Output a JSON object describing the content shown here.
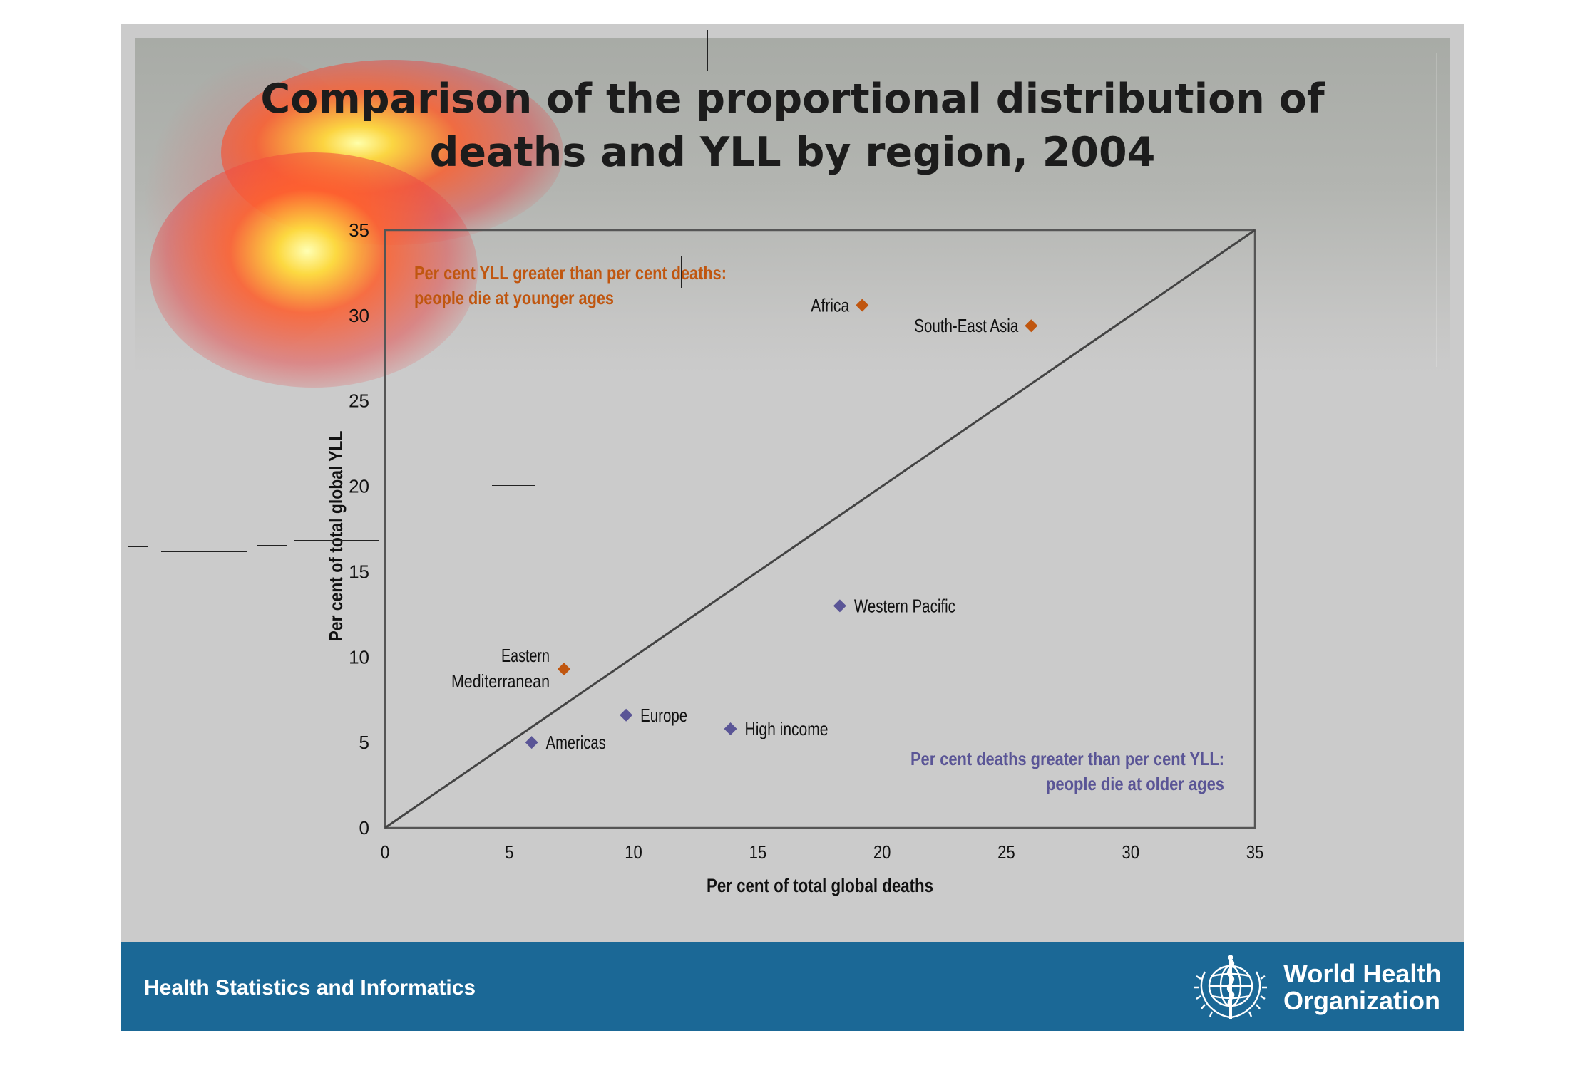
{
  "slide": {
    "title_line1": "Comparison of the proportional distribution of",
    "title_line2": "deaths and YLL by region, 2004",
    "colors": {
      "background": "#cbcbcb",
      "footer": "#1b6896",
      "orange": "#c0560f",
      "purple": "#5a5596"
    }
  },
  "footer": {
    "label": "Health Statistics and Informatics",
    "org_line1": "World Health",
    "org_line2": "Organization",
    "emblem_icon": "who-emblem-icon"
  },
  "chart_data": {
    "type": "scatter",
    "xlabel": "Per cent of total global deaths",
    "ylabel": "Per cent of total global YLL",
    "xlim": [
      0,
      35
    ],
    "ylim": [
      0,
      35
    ],
    "xticks": [
      "0",
      "5",
      "10",
      "15",
      "20",
      "25",
      "30",
      "35"
    ],
    "yticks": [
      "0",
      "5",
      "10",
      "15",
      "20",
      "25",
      "30",
      "35"
    ],
    "grid": false,
    "reference_line": {
      "from": [
        0,
        0
      ],
      "to": [
        35,
        35
      ]
    },
    "annotations": [
      {
        "line1": "Per cent YLL greater than per cent deaths:",
        "line2": "people die at younger ages",
        "color": "#c0560f"
      },
      {
        "line1": "Per cent deaths greater than per cent YLL:",
        "line2": "people die at older ages",
        "color": "#5a5596"
      }
    ],
    "points": [
      {
        "label": "Africa",
        "x": 19.2,
        "y": 30.6,
        "color": "#c0560f"
      },
      {
        "label": "South-East Asia",
        "x": 26.0,
        "y": 29.4,
        "color": "#c0560f"
      },
      {
        "label": "Eastern Mediterranean",
        "x": 7.2,
        "y": 9.3,
        "color": "#c0560f"
      },
      {
        "label": "Western Pacific",
        "x": 18.3,
        "y": 13.0,
        "color": "#5a5596"
      },
      {
        "label": "Europe",
        "x": 9.7,
        "y": 6.6,
        "color": "#5a5596"
      },
      {
        "label": "High income",
        "x": 13.9,
        "y": 5.8,
        "color": "#5a5596"
      },
      {
        "label": "Americas",
        "x": 5.9,
        "y": 5.0,
        "color": "#5a5596"
      }
    ]
  }
}
